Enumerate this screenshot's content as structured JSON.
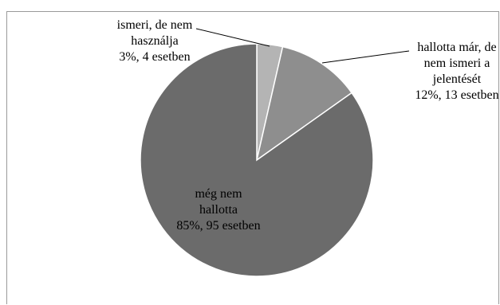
{
  "chart_data": {
    "type": "pie",
    "title": "",
    "slices": [
      {
        "name": "ismeri, de nem használja",
        "percent_label": "3%, 4 esetben",
        "label_lines": [
          "ismeri, de nem",
          "használja",
          "3%, 4 esetben"
        ],
        "count": 4,
        "percent": 3,
        "color": "#b4b4b4"
      },
      {
        "name": "hallotta már, de nem ismeri a jelentését",
        "percent_label": "12%, 13 esetben",
        "label_lines": [
          "hallotta már, de",
          "nem ismeri a",
          "jelentését",
          "12%, 13 esetben"
        ],
        "count": 13,
        "percent": 12,
        "color": "#8e8e8e"
      },
      {
        "name": "még nem hallotta",
        "percent_label": "85%, 95 esetben",
        "label_lines": [
          "még nem",
          "hallotta",
          "85%, 95 esetben"
        ],
        "count": 95,
        "percent": 85,
        "color": "#6b6b6b"
      }
    ]
  }
}
